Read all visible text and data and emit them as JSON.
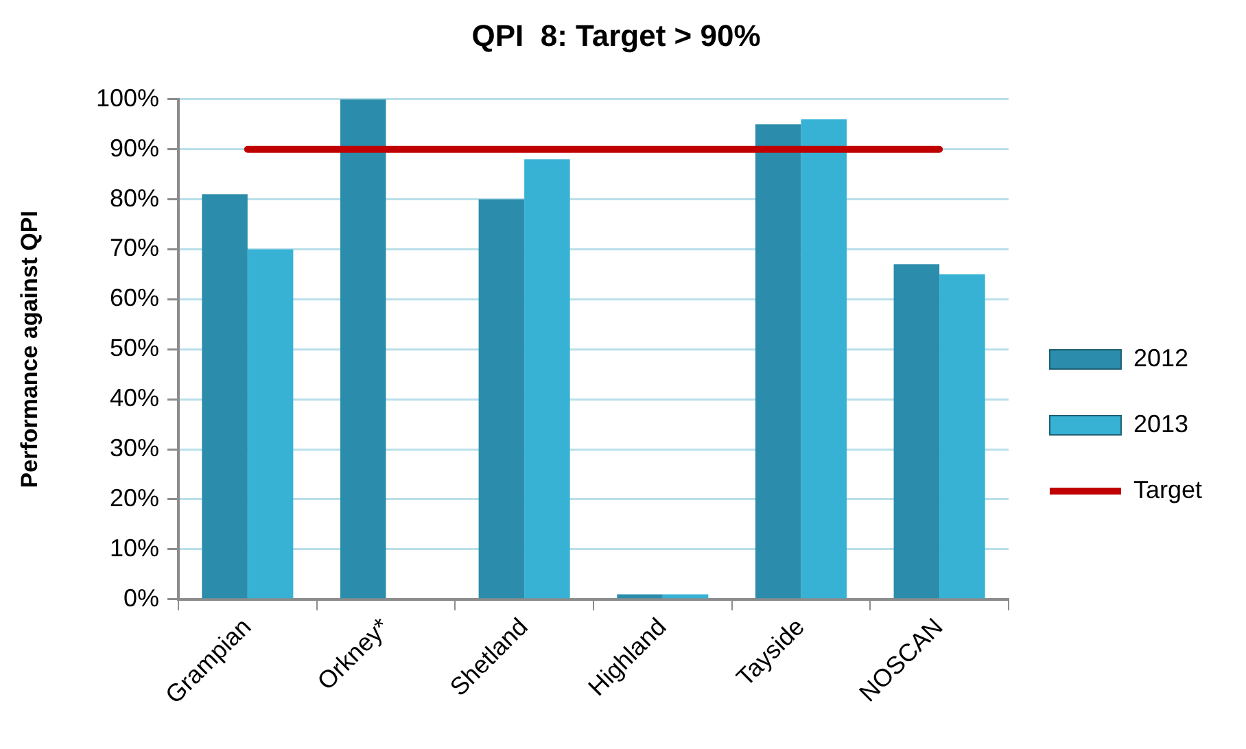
{
  "chart_data": {
    "type": "bar",
    "title": "QPI  8: Target > 90%",
    "ylabel": "Performance against QPI",
    "categories": [
      "Grampian",
      "Orkney*",
      "Shetland",
      "Highland",
      "Tayside",
      "NOSCAN"
    ],
    "series": [
      {
        "name": "2012",
        "color": "#2b8dab",
        "values": [
          81,
          100,
          80,
          1,
          95,
          67
        ]
      },
      {
        "name": "2013",
        "color": "#37b2d5",
        "values": [
          70,
          null,
          88,
          1,
          96,
          65
        ]
      },
      {
        "name": "Target",
        "type": "line",
        "color": "#c00000",
        "values": [
          90,
          90,
          90,
          90,
          90,
          90
        ]
      }
    ],
    "ylim": [
      0,
      100
    ],
    "yticks": [
      {
        "value": 0,
        "label": "0%"
      },
      {
        "value": 10,
        "label": "10%"
      },
      {
        "value": 20,
        "label": "20%"
      },
      {
        "value": 30,
        "label": "30%"
      },
      {
        "value": 40,
        "label": "40%"
      },
      {
        "value": 50,
        "label": "50%"
      },
      {
        "value": 60,
        "label": "60%"
      },
      {
        "value": 70,
        "label": "70%"
      },
      {
        "value": 80,
        "label": "80%"
      },
      {
        "value": 90,
        "label": "90%"
      },
      {
        "value": 100,
        "label": "100%"
      }
    ],
    "grid": "y",
    "legend": "right"
  }
}
